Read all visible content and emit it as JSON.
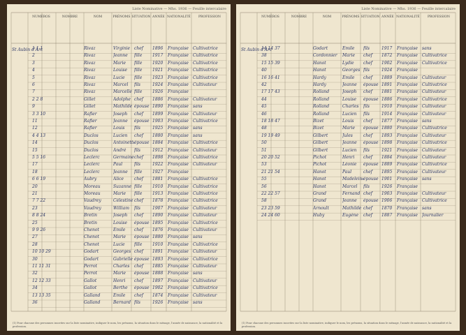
{
  "pages": [
    {
      "header": "Liste Nominative — Mhs. 1936 — Feuille intercalaire",
      "columns": [
        "NUMÉROS",
        "NOMBRE",
        "NOM",
        "PRÉNOMS",
        "SITUATION",
        "ANNÉE",
        "NATIONALITÉ",
        "PROFESSION"
      ],
      "street": "St Aubin d'Arc",
      "rows": [
        [
          "1 1 1",
          "Rivaz",
          "Virginie",
          "chef",
          "1896",
          "Française",
          "Cultivatrice"
        ],
        [
          "2",
          "Rivaz",
          "Jeanne",
          "fille",
          "1917",
          "Française",
          "Cultivatrice"
        ],
        [
          "3",
          "Rivaz",
          "Marie",
          "fille",
          "1920",
          "Française",
          "Cultivatrice"
        ],
        [
          "4",
          "Rivaz",
          "Louise",
          "fille",
          "1921",
          "Française",
          "Cultivatrice"
        ],
        [
          "5",
          "Rivaz",
          "Lucie",
          "fille",
          "1923",
          "Française",
          "Cultivatrice"
        ],
        [
          "6",
          "Rivaz",
          "Marcel",
          "fils",
          "1924",
          "Française",
          "Cultivateur"
        ],
        [
          "7",
          "Rivaz",
          "Marcelle",
          "fille",
          "1926",
          "Française",
          null
        ],
        [
          "2 2 8",
          "Gillet",
          "Adolphe",
          "chef",
          "1886",
          "Française",
          "Cultivateur"
        ],
        [
          "9",
          "Gillet",
          "Mathilde",
          "épouse",
          "1890",
          "Française",
          "sans"
        ],
        [
          "3 3 10",
          "Rafier",
          "Joseph",
          "chef",
          "1899",
          "Française",
          "Cultivateur"
        ],
        [
          "11",
          "Rafier",
          "Jeanne",
          "épouse",
          "1903",
          "Française",
          "Cultivatrice"
        ],
        [
          "12",
          "Rafier",
          "Louis",
          "fils",
          "1925",
          "Française",
          "sans"
        ],
        [
          "4 4 13",
          "Duclos",
          "Lucien",
          "chef",
          "1880",
          "Française",
          "sans"
        ],
        [
          "14",
          "Duclos",
          "Antoinette",
          "épouse",
          "1884",
          "Française",
          "Cultivatrice"
        ],
        [
          "15",
          "Duclos",
          "André",
          "fils",
          "1912",
          "Française",
          "Cultivateur"
        ],
        [
          "5 5 16",
          "Leclerc",
          "Germaine",
          "chef",
          "1898",
          "Française",
          "Cultivatrice"
        ],
        [
          "17",
          "Leclerc",
          "Paul",
          "fils",
          "1922",
          "Française",
          "Cultivateur"
        ],
        [
          "18",
          "Leclerc",
          "Jeanne",
          "fille",
          "1927",
          "Française",
          null
        ],
        [
          "6 6 19",
          "Aubry",
          "Alice",
          "chef",
          "1881",
          "Française",
          "Cultivatrice"
        ],
        [
          "20",
          "Moreau",
          "Suzanne",
          "fille",
          "1910",
          "Française",
          "Cultivatrice"
        ],
        [
          "21",
          "Moreau",
          "Marie",
          "fille",
          "1913",
          "Française",
          "Cultivatrice"
        ],
        [
          "7 7 22",
          "Vaudrey",
          "Célestine",
          "chef",
          "1878",
          "Française",
          "Cultivatrice"
        ],
        [
          "23",
          "Vaudrey",
          "William",
          "fils",
          "1907",
          "Française",
          "Cultivateur"
        ],
        [
          "8 8 24",
          "Bretin",
          "Joseph",
          "chef",
          "1890",
          "Française",
          "Cultivateur"
        ],
        [
          "25",
          "Bretin",
          "Louise",
          "épouse",
          "1895",
          "Française",
          "Cultivatrice"
        ],
        [
          "9 9 26",
          "Chenot",
          "Emile",
          "chef",
          "1876",
          "Française",
          "Cultivateur"
        ],
        [
          "27",
          "Chenot",
          "Marie",
          "épouse",
          "1880",
          "Française",
          "sans"
        ],
        [
          "28",
          "Chenot",
          "Lucie",
          "fille",
          "1910",
          "Française",
          "Cultivatrice"
        ],
        [
          "10 10 29",
          "Godart",
          "Georges",
          "chef",
          "1891",
          "Française",
          "Cultivateur"
        ],
        [
          "30",
          "Godart",
          "Gabrielle",
          "épouse",
          "1893",
          "Française",
          "Cultivatrice"
        ],
        [
          "11 11 31",
          "Perrot",
          "Charles",
          "chef",
          "1885",
          "Française",
          "Cultivateur"
        ],
        [
          "32",
          "Perrot",
          "Marie",
          "épouse",
          "1888",
          "Française",
          "sans"
        ],
        [
          "12 12 33",
          "Gallot",
          "Henri",
          "chef",
          "1897",
          "Française",
          "Cultivateur"
        ],
        [
          "34",
          "Gallot",
          "Berthe",
          "épouse",
          "1902",
          "Française",
          "Cultivatrice"
        ],
        [
          "13 13 35",
          "Galland",
          "Emile",
          "chef",
          "1874",
          "Française",
          "Cultivateur"
        ],
        [
          "36",
          "Galland",
          "Bernard",
          "fils",
          "1926",
          "Française",
          "sans"
        ]
      ],
      "footnote": "(1) Pour chacune des personnes inscrites sur la liste nominative, indiquer le nom, les prénoms, la situation dans le ménage, l'année de naissance, la nationalité et la profession."
    },
    {
      "header": "Liste Nominative — Mhs. 1936 — Feuille intercalaire",
      "columns": [
        "NUMÉROS",
        "NOMBRE",
        "NOM",
        "PRÉNOMS",
        "SITUATION",
        "ANNÉE",
        "NATIONALITÉ",
        "PROFESSION"
      ],
      "street": "St Aubin d'Arc",
      "rows": [
        [
          "14 14 37",
          "Godart",
          "Emile",
          "fils",
          "1917",
          "Française",
          "sans"
        ],
        [
          "38",
          "Cordonnier",
          "Marie",
          "chef",
          "1872",
          "Française",
          "Cultivatrice"
        ],
        [
          "15 15 39",
          "Hanot",
          "Lydie",
          "chef",
          "1902",
          "Française",
          "Cultivatrice"
        ],
        [
          "40",
          "Hanot",
          "Georges",
          "fils",
          "1924",
          "Française",
          null
        ],
        [
          "16 16 41",
          "Hardy",
          "Emile",
          "chef",
          "1889",
          "Française",
          "Cultivateur"
        ],
        [
          "42",
          "Hardy",
          "Jeanne",
          "épouse",
          "1891",
          "Française",
          "Cultivatrice"
        ],
        [
          "17 17 43",
          "Rolland",
          "Joseph",
          "chef",
          "1881",
          "Française",
          "Cultivateur"
        ],
        [
          "44",
          "Rolland",
          "Louise",
          "épouse",
          "1886",
          "Française",
          "Cultivatrice"
        ],
        [
          "45",
          "Rolland",
          "Charles",
          "fils",
          "1910",
          "Française",
          "Cultivateur"
        ],
        [
          "46",
          "Rolland",
          "Lucien",
          "fils",
          "1914",
          "Française",
          "Cultivateur"
        ],
        [
          "18 18 47",
          "Bizet",
          "Louis",
          "chef",
          "1877",
          "Française",
          "sans"
        ],
        [
          "48",
          "Bizet",
          "Marie",
          "épouse",
          "1880",
          "Française",
          "Cultivatrice"
        ],
        [
          "19 19 49",
          "Gilbert",
          "Jules",
          "chef",
          "1893",
          "Française",
          "Cultivateur"
        ],
        [
          "50",
          "Gilbert",
          "Jeanne",
          "épouse",
          "1898",
          "Française",
          "Cultivatrice"
        ],
        [
          "51",
          "Gilbert",
          "Lucien",
          "fils",
          "1921",
          "Française",
          "Cultivateur"
        ],
        [
          "20 20 52",
          "Pichot",
          "Henri",
          "chef",
          "1884",
          "Française",
          "Cultivateur"
        ],
        [
          "53",
          "Pichot",
          "Léonie",
          "épouse",
          "1889",
          "Française",
          "Cultivatrice"
        ],
        [
          "21 21 54",
          "Hanot",
          "Paul",
          "chef",
          "1895",
          "Française",
          "Cultivateur"
        ],
        [
          "55",
          "Hanot",
          "Madeleine",
          "épouse",
          "1901",
          "Française",
          "sans"
        ],
        [
          "56",
          "Hanot",
          "Marcel",
          "fils",
          "1926",
          "Française",
          null
        ],
        [
          "22 22 57",
          "Grand",
          "Fernand",
          "chef",
          "1903",
          "Française",
          "Cultivateur"
        ],
        [
          "58",
          "Grand",
          "Jeanne",
          "épouse",
          "1906",
          "Française",
          "Cultivatrice"
        ],
        [
          "23 23 59",
          "Arnoult",
          "Mathilde",
          "chef",
          "1870",
          "Française",
          "sans"
        ],
        [
          "24 24 60",
          "Huby",
          "Eugène",
          "chef",
          "1887",
          "Française",
          "Journalier"
        ]
      ],
      "footnote": "(1) Pour chacune des personnes inscrites sur la liste nominative, indiquer le nom, les prénoms, la situation dans le ménage, l'année de naissance, la nationalité et la profession."
    }
  ]
}
